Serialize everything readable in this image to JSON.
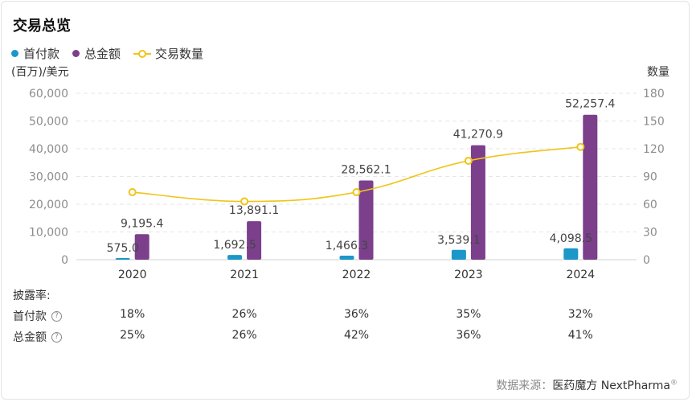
{
  "title": "交易总览",
  "legend": {
    "upfront": "首付款",
    "total": "总金额",
    "count": "交易数量"
  },
  "axis_units": {
    "left": "(百万)/美元",
    "right": "数量"
  },
  "colors": {
    "upfront": "#1b97c9",
    "total": "#7b3f8c",
    "count": "#f0c419"
  },
  "chart_data": {
    "type": "bar",
    "categories": [
      "2020",
      "2021",
      "2022",
      "2023",
      "2024"
    ],
    "series": [
      {
        "name": "首付款",
        "type": "bar",
        "axis": "left",
        "values": [
          575.0,
          1692.5,
          1466.3,
          3539.1,
          4098.5
        ],
        "labels": [
          "575.0",
          "1,692.5",
          "1,466.3",
          "3,539.1",
          "4,098.5"
        ]
      },
      {
        "name": "总金额",
        "type": "bar",
        "axis": "left",
        "values": [
          9195.4,
          13891.1,
          28562.1,
          41270.9,
          52257.4
        ],
        "labels": [
          "9,195.4",
          "13,891.1",
          "28,562.1",
          "41,270.9",
          "52,257.4"
        ]
      },
      {
        "name": "交易数量",
        "type": "line",
        "axis": "right",
        "values": [
          73,
          63,
          73,
          107,
          122
        ]
      }
    ],
    "y_left": {
      "ylim": [
        0,
        60000
      ],
      "ticks": [
        "0",
        "10,000",
        "20,000",
        "30,000",
        "40,000",
        "50,000",
        "60,000"
      ]
    },
    "y_right": {
      "ylim": [
        0,
        180
      ],
      "ticks": [
        "0",
        "30",
        "60",
        "90",
        "120",
        "150",
        "180"
      ]
    },
    "grid": true,
    "legend_position": "top-left"
  },
  "disclosure": {
    "label": "披露率:",
    "rows": [
      {
        "label": "首付款",
        "values": [
          "18%",
          "26%",
          "36%",
          "35%",
          "32%"
        ]
      },
      {
        "label": "总金额",
        "values": [
          "25%",
          "26%",
          "42%",
          "36%",
          "41%"
        ]
      }
    ]
  },
  "source": {
    "prefix": "数据来源：",
    "brand": "医药魔方 NextPharma",
    "mark": "®"
  }
}
